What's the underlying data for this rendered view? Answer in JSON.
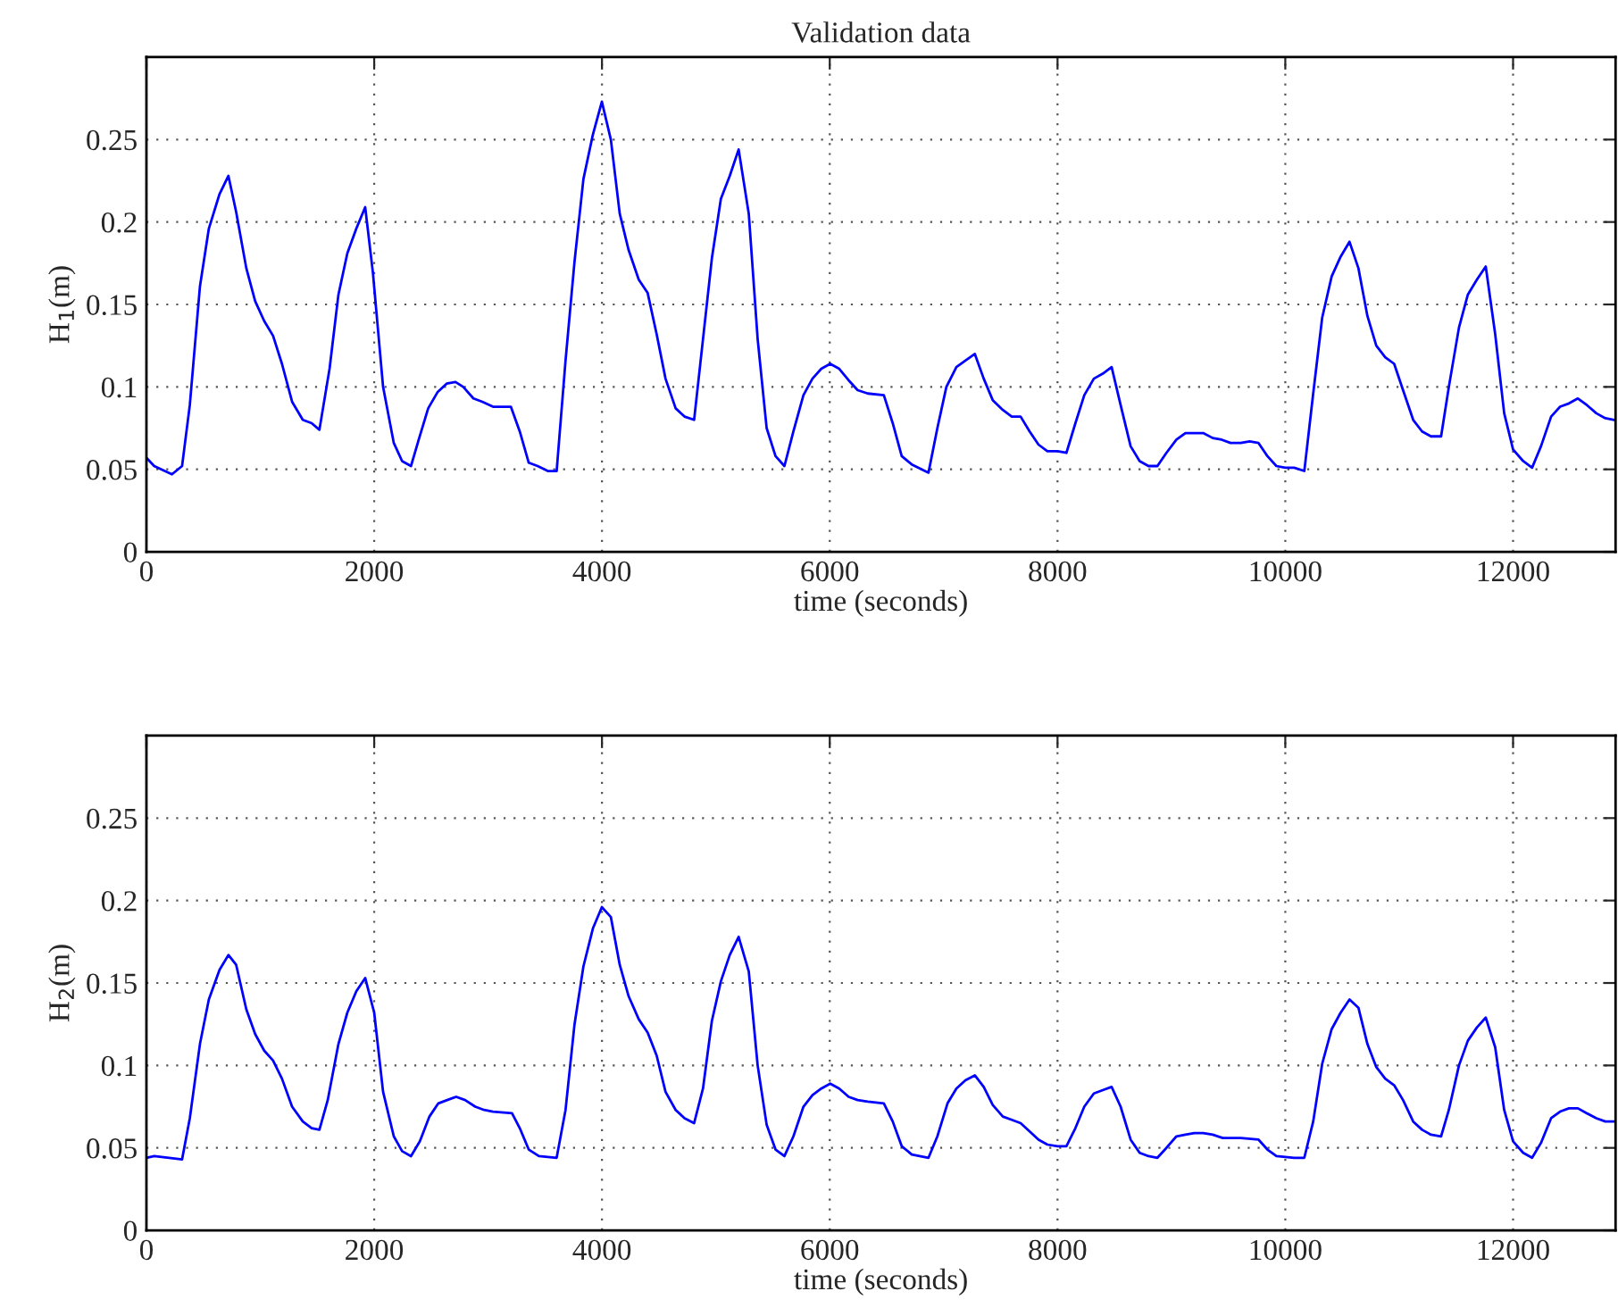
{
  "chart_data": [
    {
      "type": "line",
      "title": "Validation data",
      "xlabel": "time (seconds)",
      "ylabel": "H$_{1}$(m)",
      "xlim": [
        0,
        12900
      ],
      "ylim": [
        0,
        0.3
      ],
      "xticks": [
        0,
        2000,
        4000,
        6000,
        8000,
        10000,
        12000
      ],
      "yticks": [
        0,
        0.05,
        0.1,
        0.15,
        0.2,
        0.25
      ],
      "grid": true,
      "line_style": "solid",
      "marker": "none",
      "series": [
        {
          "color": "#0000ff",
          "x": [
            0,
            68,
            224,
            313,
            381,
            470,
            548,
            642,
            720,
            788,
            877,
            955,
            1034,
            1112,
            1190,
            1279,
            1373,
            1451,
            1519,
            1608,
            1686,
            1764,
            1843,
            1921,
            1989,
            2078,
            2172,
            2245,
            2323,
            2391,
            2474,
            2558,
            2636,
            2714,
            2782,
            2871,
            2949,
            3043,
            3200,
            3278,
            3357,
            3435,
            3524,
            3602,
            3680,
            3759,
            3837,
            3920,
            3999,
            4078,
            4156,
            4234,
            4323,
            4401,
            4480,
            4558,
            4647,
            4725,
            4809,
            4887,
            4965,
            5044,
            5122,
            5200,
            5289,
            5367,
            5446,
            5524,
            5602,
            5681,
            5769,
            5848,
            5926,
            6004,
            6083,
            6166,
            6245,
            6334,
            6475,
            6553,
            6632,
            6720,
            6867,
            6945,
            7024,
            7112,
            7191,
            7274,
            7352,
            7431,
            7520,
            7598,
            7676,
            7755,
            7833,
            7911,
            8000,
            8078,
            8157,
            8235,
            8319,
            8397,
            8475,
            8554,
            8642,
            8721,
            8799,
            8877,
            8956,
            9044,
            9123,
            9201,
            9279,
            9363,
            9441,
            9519,
            9608,
            9687,
            9765,
            9843,
            9922,
            10000,
            10078,
            10167,
            10245,
            10324,
            10407,
            10486,
            10564,
            10642,
            10721,
            10799,
            10877,
            10956,
            11034,
            11123,
            11201,
            11279,
            11368,
            11436,
            11525,
            11603,
            11682,
            11760,
            11843,
            11922,
            12000,
            12089,
            12167,
            12245,
            12334,
            12413,
            12491,
            12569,
            12648,
            12731,
            12810,
            12888
          ],
          "values": [
            0.057,
            0.052,
            0.047,
            0.052,
            0.089,
            0.161,
            0.196,
            0.217,
            0.228,
            0.206,
            0.172,
            0.152,
            0.14,
            0.131,
            0.114,
            0.091,
            0.08,
            0.078,
            0.074,
            0.111,
            0.156,
            0.181,
            0.196,
            0.209,
            0.169,
            0.1,
            0.066,
            0.055,
            0.052,
            0.068,
            0.087,
            0.097,
            0.102,
            0.103,
            0.1,
            0.093,
            0.091,
            0.088,
            0.088,
            0.073,
            0.054,
            0.052,
            0.049,
            0.049,
            0.116,
            0.176,
            0.226,
            0.253,
            0.273,
            0.25,
            0.205,
            0.183,
            0.165,
            0.157,
            0.132,
            0.105,
            0.087,
            0.082,
            0.08,
            0.129,
            0.178,
            0.214,
            0.228,
            0.244,
            0.205,
            0.129,
            0.075,
            0.058,
            0.052,
            0.073,
            0.095,
            0.105,
            0.111,
            0.114,
            0.111,
            0.104,
            0.098,
            0.096,
            0.095,
            0.078,
            0.058,
            0.053,
            0.048,
            0.075,
            0.1,
            0.112,
            0.116,
            0.12,
            0.105,
            0.092,
            0.086,
            0.082,
            0.082,
            0.073,
            0.065,
            0.061,
            0.061,
            0.06,
            0.078,
            0.095,
            0.105,
            0.108,
            0.112,
            0.089,
            0.064,
            0.055,
            0.052,
            0.052,
            0.06,
            0.068,
            0.072,
            0.072,
            0.072,
            0.069,
            0.068,
            0.066,
            0.066,
            0.067,
            0.066,
            0.058,
            0.052,
            0.051,
            0.051,
            0.049,
            0.096,
            0.142,
            0.167,
            0.179,
            0.188,
            0.172,
            0.143,
            0.125,
            0.118,
            0.114,
            0.098,
            0.08,
            0.073,
            0.07,
            0.07,
            0.1,
            0.136,
            0.156,
            0.165,
            0.173,
            0.132,
            0.084,
            0.062,
            0.055,
            0.051,
            0.064,
            0.082,
            0.088,
            0.09,
            0.093,
            0.089,
            0.084,
            0.081,
            0.08
          ]
        }
      ]
    },
    {
      "type": "line",
      "xlabel": "time (seconds)",
      "ylabel": "H$_{2}$(m)",
      "xlim": [
        0,
        12900
      ],
      "ylim": [
        0,
        0.3
      ],
      "xticks": [
        0,
        2000,
        4000,
        6000,
        8000,
        10000,
        12000
      ],
      "yticks": [
        0,
        0.05,
        0.1,
        0.15,
        0.2,
        0.25
      ],
      "grid": true,
      "line_style": "solid",
      "marker": "none",
      "series": [
        {
          "color": "#0000ff",
          "x": [
            0,
            68,
            313,
            381,
            470,
            548,
            642,
            720,
            788,
            877,
            955,
            1034,
            1112,
            1190,
            1279,
            1373,
            1451,
            1519,
            1592,
            1686,
            1764,
            1843,
            1921,
            2000,
            2078,
            2172,
            2245,
            2323,
            2401,
            2485,
            2563,
            2641,
            2720,
            2798,
            2887,
            2965,
            3043,
            3210,
            3278,
            3357,
            3446,
            3602,
            3680,
            3759,
            3837,
            3920,
            3999,
            4078,
            4156,
            4234,
            4323,
            4401,
            4480,
            4558,
            4647,
            4725,
            4809,
            4887,
            4965,
            5044,
            5122,
            5200,
            5289,
            5367,
            5446,
            5524,
            5602,
            5681,
            5769,
            5848,
            5926,
            6004,
            6083,
            6166,
            6245,
            6334,
            6475,
            6553,
            6632,
            6720,
            6867,
            6945,
            7034,
            7112,
            7191,
            7274,
            7352,
            7431,
            7520,
            7598,
            7676,
            7755,
            7833,
            7911,
            8000,
            8078,
            8157,
            8235,
            8319,
            8397,
            8475,
            8554,
            8642,
            8721,
            8799,
            8877,
            8956,
            9044,
            9123,
            9201,
            9279,
            9363,
            9451,
            9608,
            9765,
            9843,
            9922,
            10078,
            10167,
            10245,
            10324,
            10407,
            10486,
            10564,
            10642,
            10721,
            10799,
            10877,
            10956,
            11034,
            11123,
            11201,
            11279,
            11368,
            11436,
            11525,
            11603,
            11682,
            11760,
            11843,
            11922,
            12000,
            12089,
            12167,
            12245,
            12334,
            12413,
            12491,
            12569,
            12648,
            12731,
            12810,
            12888
          ],
          "values": [
            0.044,
            0.045,
            0.043,
            0.068,
            0.113,
            0.14,
            0.158,
            0.167,
            0.161,
            0.134,
            0.119,
            0.109,
            0.103,
            0.092,
            0.075,
            0.066,
            0.062,
            0.061,
            0.079,
            0.113,
            0.132,
            0.145,
            0.153,
            0.132,
            0.084,
            0.057,
            0.048,
            0.045,
            0.054,
            0.069,
            0.077,
            0.079,
            0.081,
            0.079,
            0.075,
            0.073,
            0.072,
            0.071,
            0.062,
            0.049,
            0.045,
            0.044,
            0.073,
            0.125,
            0.16,
            0.183,
            0.196,
            0.19,
            0.161,
            0.142,
            0.128,
            0.12,
            0.106,
            0.084,
            0.073,
            0.068,
            0.065,
            0.086,
            0.127,
            0.151,
            0.167,
            0.178,
            0.157,
            0.1,
            0.064,
            0.049,
            0.045,
            0.057,
            0.075,
            0.082,
            0.086,
            0.089,
            0.086,
            0.081,
            0.079,
            0.078,
            0.077,
            0.066,
            0.051,
            0.046,
            0.044,
            0.057,
            0.077,
            0.086,
            0.091,
            0.094,
            0.087,
            0.076,
            0.069,
            0.067,
            0.065,
            0.06,
            0.055,
            0.052,
            0.051,
            0.051,
            0.062,
            0.075,
            0.083,
            0.085,
            0.087,
            0.075,
            0.055,
            0.047,
            0.045,
            0.044,
            0.05,
            0.057,
            0.058,
            0.059,
            0.059,
            0.058,
            0.056,
            0.056,
            0.055,
            0.049,
            0.045,
            0.044,
            0.044,
            0.066,
            0.101,
            0.122,
            0.132,
            0.14,
            0.135,
            0.113,
            0.099,
            0.092,
            0.088,
            0.079,
            0.066,
            0.061,
            0.058,
            0.057,
            0.073,
            0.1,
            0.115,
            0.123,
            0.129,
            0.111,
            0.073,
            0.054,
            0.047,
            0.044,
            0.053,
            0.068,
            0.072,
            0.074,
            0.074,
            0.071,
            0.068,
            0.066,
            0.066
          ]
        }
      ]
    }
  ]
}
